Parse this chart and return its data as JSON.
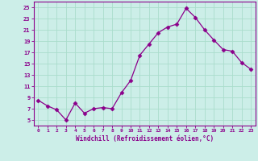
{
  "x": [
    0,
    1,
    2,
    3,
    4,
    5,
    6,
    7,
    8,
    9,
    10,
    11,
    12,
    13,
    14,
    15,
    16,
    17,
    18,
    19,
    20,
    21,
    22,
    23
  ],
  "y": [
    8.5,
    7.5,
    6.8,
    5.0,
    8.0,
    6.2,
    7.0,
    7.2,
    7.0,
    9.8,
    12.0,
    16.5,
    18.5,
    20.5,
    21.5,
    22.0,
    24.8,
    23.2,
    21.0,
    19.2,
    17.5,
    17.2,
    15.2,
    14.0
  ],
  "line_color": "#8B008B",
  "marker": ".",
  "marker_size": 4,
  "bg_color": "#cceee8",
  "grid_color": "#aaddcc",
  "xlabel": "Windchill (Refroidissement éolien,°C)",
  "ylabel_ticks": [
    5,
    7,
    9,
    11,
    13,
    15,
    17,
    19,
    21,
    23,
    25
  ],
  "ylim": [
    4,
    26
  ],
  "xlim": [
    -0.5,
    23.5
  ],
  "title": ""
}
